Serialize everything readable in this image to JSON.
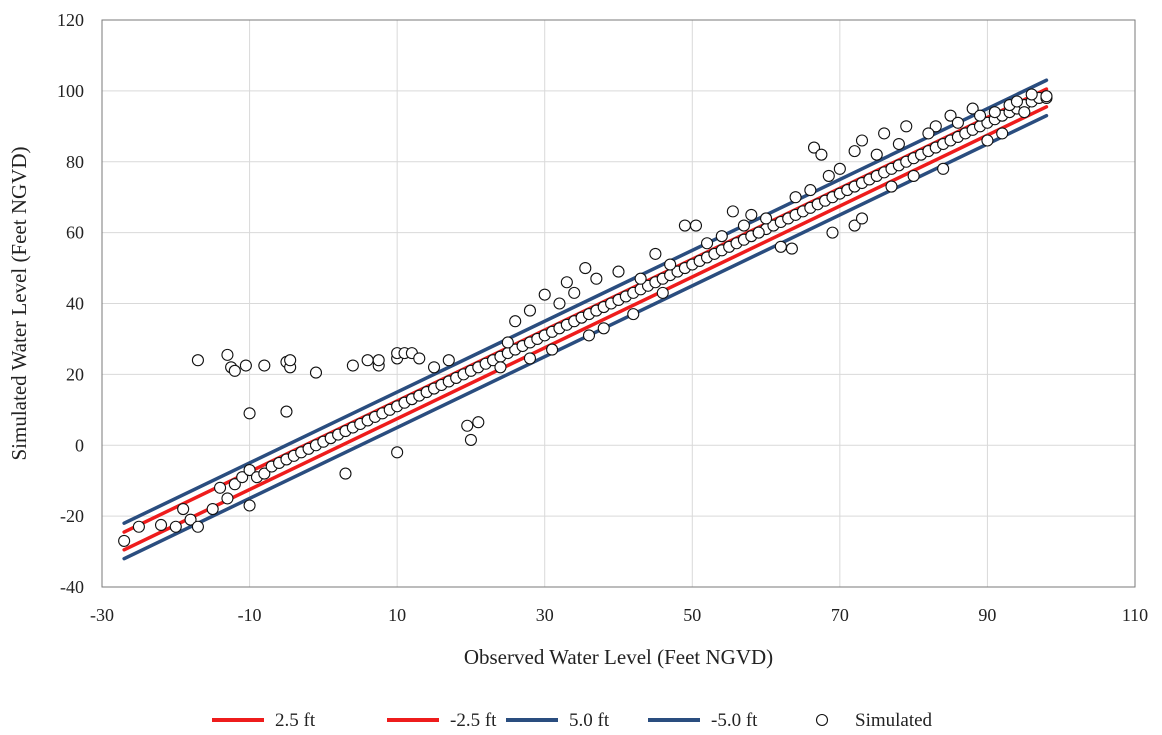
{
  "chart_data": {
    "type": "scatter",
    "title": "",
    "xlabel": "Observed Water Level (Feet NGVD)",
    "ylabel": "Simulated Water Level (Feet NGVD)",
    "xlim": [
      -30,
      110
    ],
    "ylim": [
      -40,
      120
    ],
    "xticks": [
      -30,
      -10,
      10,
      30,
      50,
      70,
      90,
      110
    ],
    "yticks": [
      -40,
      -20,
      0,
      20,
      40,
      60,
      80,
      100,
      120
    ],
    "grid": true,
    "legend_position": "bottom",
    "series": [
      {
        "name": "2.5 ft",
        "kind": "line",
        "color": "#ee1c1c",
        "x": [
          -27,
          98
        ],
        "y": [
          -24.5,
          100.5
        ]
      },
      {
        "name": "-2.5 ft",
        "kind": "line",
        "color": "#ee1c1c",
        "x": [
          -27,
          98
        ],
        "y": [
          -29.5,
          95.5
        ]
      },
      {
        "name": "5.0 ft",
        "kind": "line",
        "color": "#2a4d7f",
        "x": [
          -27,
          98
        ],
        "y": [
          -22,
          103
        ]
      },
      {
        "name": "-5.0 ft",
        "kind": "line",
        "color": "#2a4d7f",
        "x": [
          -27,
          98
        ],
        "y": [
          -32,
          93
        ]
      },
      {
        "name": "Simulated",
        "kind": "scatter",
        "points": [
          [
            -27,
            -27
          ],
          [
            -25,
            -23
          ],
          [
            -22,
            -22.5
          ],
          [
            -20,
            -23
          ],
          [
            -19,
            -18
          ],
          [
            -18,
            -21
          ],
          [
            -17,
            -23
          ],
          [
            -15,
            -18
          ],
          [
            -14,
            -12
          ],
          [
            -13,
            -15
          ],
          [
            -12,
            -11
          ],
          [
            -11,
            -9
          ],
          [
            -10,
            -7
          ],
          [
            -9,
            -9
          ],
          [
            -8,
            -8
          ],
          [
            -7,
            -6
          ],
          [
            -6,
            -5
          ],
          [
            -5,
            -4
          ],
          [
            -4,
            -3
          ],
          [
            -3,
            -2
          ],
          [
            -2,
            -1
          ],
          [
            -1,
            0
          ],
          [
            0,
            1
          ],
          [
            1,
            2
          ],
          [
            2,
            3
          ],
          [
            3,
            4
          ],
          [
            4,
            5
          ],
          [
            5,
            6
          ],
          [
            6,
            7
          ],
          [
            7,
            8
          ],
          [
            8,
            9
          ],
          [
            9,
            10
          ],
          [
            10,
            11
          ],
          [
            11,
            12
          ],
          [
            12,
            13
          ],
          [
            13,
            14
          ],
          [
            14,
            15
          ],
          [
            15,
            16
          ],
          [
            16,
            17
          ],
          [
            17,
            18
          ],
          [
            18,
            19
          ],
          [
            19,
            20
          ],
          [
            20,
            21
          ],
          [
            21,
            22
          ],
          [
            22,
            23
          ],
          [
            23,
            24
          ],
          [
            24,
            25
          ],
          [
            25,
            26
          ],
          [
            26,
            27
          ],
          [
            27,
            28
          ],
          [
            28,
            29
          ],
          [
            29,
            30
          ],
          [
            30,
            31
          ],
          [
            31,
            32
          ],
          [
            32,
            33
          ],
          [
            33,
            34
          ],
          [
            34,
            35
          ],
          [
            35,
            36
          ],
          [
            36,
            37
          ],
          [
            37,
            38
          ],
          [
            38,
            39
          ],
          [
            39,
            40
          ],
          [
            40,
            41
          ],
          [
            41,
            42
          ],
          [
            42,
            43
          ],
          [
            43,
            44
          ],
          [
            44,
            45
          ],
          [
            45,
            46
          ],
          [
            46,
            47
          ],
          [
            47,
            48
          ],
          [
            48,
            49
          ],
          [
            49,
            50
          ],
          [
            50,
            51
          ],
          [
            51,
            52
          ],
          [
            52,
            53
          ],
          [
            53,
            54
          ],
          [
            54,
            55
          ],
          [
            55,
            56
          ],
          [
            56,
            57
          ],
          [
            57,
            58
          ],
          [
            58,
            59
          ],
          [
            59,
            60
          ],
          [
            60,
            61
          ],
          [
            61,
            62
          ],
          [
            62,
            63
          ],
          [
            63,
            64
          ],
          [
            64,
            65
          ],
          [
            65,
            66
          ],
          [
            66,
            67
          ],
          [
            67,
            68
          ],
          [
            68,
            69
          ],
          [
            69,
            70
          ],
          [
            70,
            71
          ],
          [
            71,
            72
          ],
          [
            72,
            73
          ],
          [
            73,
            74
          ],
          [
            74,
            75
          ],
          [
            75,
            76
          ],
          [
            76,
            77
          ],
          [
            77,
            78
          ],
          [
            78,
            79
          ],
          [
            79,
            80
          ],
          [
            80,
            81
          ],
          [
            81,
            82
          ],
          [
            82,
            83
          ],
          [
            83,
            84
          ],
          [
            84,
            85
          ],
          [
            85,
            86
          ],
          [
            86,
            87
          ],
          [
            87,
            88
          ],
          [
            88,
            89
          ],
          [
            89,
            90
          ],
          [
            90,
            91
          ],
          [
            91,
            92
          ],
          [
            92,
            93
          ],
          [
            93,
            94
          ],
          [
            94,
            95
          ],
          [
            95,
            96
          ],
          [
            96,
            97
          ],
          [
            97,
            98
          ],
          [
            98,
            98
          ],
          [
            -17,
            24
          ],
          [
            -13,
            25.5
          ],
          [
            -12.5,
            22
          ],
          [
            -12,
            21
          ],
          [
            -10.5,
            22.5
          ],
          [
            -8,
            22.5
          ],
          [
            -5,
            23.5
          ],
          [
            -4.5,
            22
          ],
          [
            -4.5,
            24
          ],
          [
            -1,
            20.5
          ],
          [
            4,
            22.5
          ],
          [
            6,
            24
          ],
          [
            7.5,
            22.5
          ],
          [
            7.5,
            24
          ],
          [
            10,
            24.5
          ],
          [
            10,
            26
          ],
          [
            11,
            26
          ],
          [
            12,
            26
          ],
          [
            13,
            24.5
          ],
          [
            -10,
            9
          ],
          [
            -5,
            9.5
          ],
          [
            -10,
            -17
          ],
          [
            3,
            -8
          ],
          [
            10,
            -2
          ],
          [
            20,
            1.5
          ],
          [
            21,
            6.5
          ],
          [
            19.5,
            5.5
          ],
          [
            15,
            22
          ],
          [
            17,
            24
          ],
          [
            30,
            42.5
          ],
          [
            35.5,
            50
          ],
          [
            37,
            47
          ],
          [
            33,
            46
          ],
          [
            40,
            49
          ],
          [
            45,
            54
          ],
          [
            49,
            62
          ],
          [
            50.5,
            62
          ],
          [
            55.5,
            66
          ],
          [
            58,
            65
          ],
          [
            59,
            60
          ],
          [
            62,
            56
          ],
          [
            66.5,
            84
          ],
          [
            67.5,
            82
          ],
          [
            68.5,
            76
          ],
          [
            70,
            78
          ],
          [
            72,
            83
          ],
          [
            73,
            86
          ],
          [
            76,
            88
          ],
          [
            79,
            90
          ],
          [
            83,
            90
          ],
          [
            85,
            93
          ],
          [
            88,
            95
          ],
          [
            93,
            96
          ],
          [
            98,
            98.5
          ],
          [
            69,
            60
          ],
          [
            72,
            62
          ],
          [
            73,
            64
          ],
          [
            77,
            73
          ],
          [
            80,
            76
          ],
          [
            84,
            78
          ],
          [
            90,
            86
          ],
          [
            92,
            88
          ],
          [
            95,
            94
          ],
          [
            63.5,
            55.5
          ],
          [
            46,
            43
          ],
          [
            42,
            37
          ],
          [
            38,
            33
          ],
          [
            36,
            31
          ],
          [
            31,
            27
          ],
          [
            28,
            24.5
          ],
          [
            24,
            22
          ],
          [
            25,
            29
          ],
          [
            26,
            35
          ],
          [
            28,
            38
          ],
          [
            32,
            40
          ],
          [
            34,
            43
          ],
          [
            43,
            47
          ],
          [
            47,
            51
          ],
          [
            52,
            57
          ],
          [
            54,
            59
          ],
          [
            57,
            62
          ],
          [
            60,
            64
          ],
          [
            64,
            70
          ],
          [
            66,
            72
          ],
          [
            75,
            82
          ],
          [
            78,
            85
          ],
          [
            82,
            88
          ],
          [
            86,
            91
          ],
          [
            89,
            93
          ],
          [
            91,
            94
          ],
          [
            94,
            97
          ],
          [
            96,
            99
          ]
        ]
      }
    ]
  }
}
